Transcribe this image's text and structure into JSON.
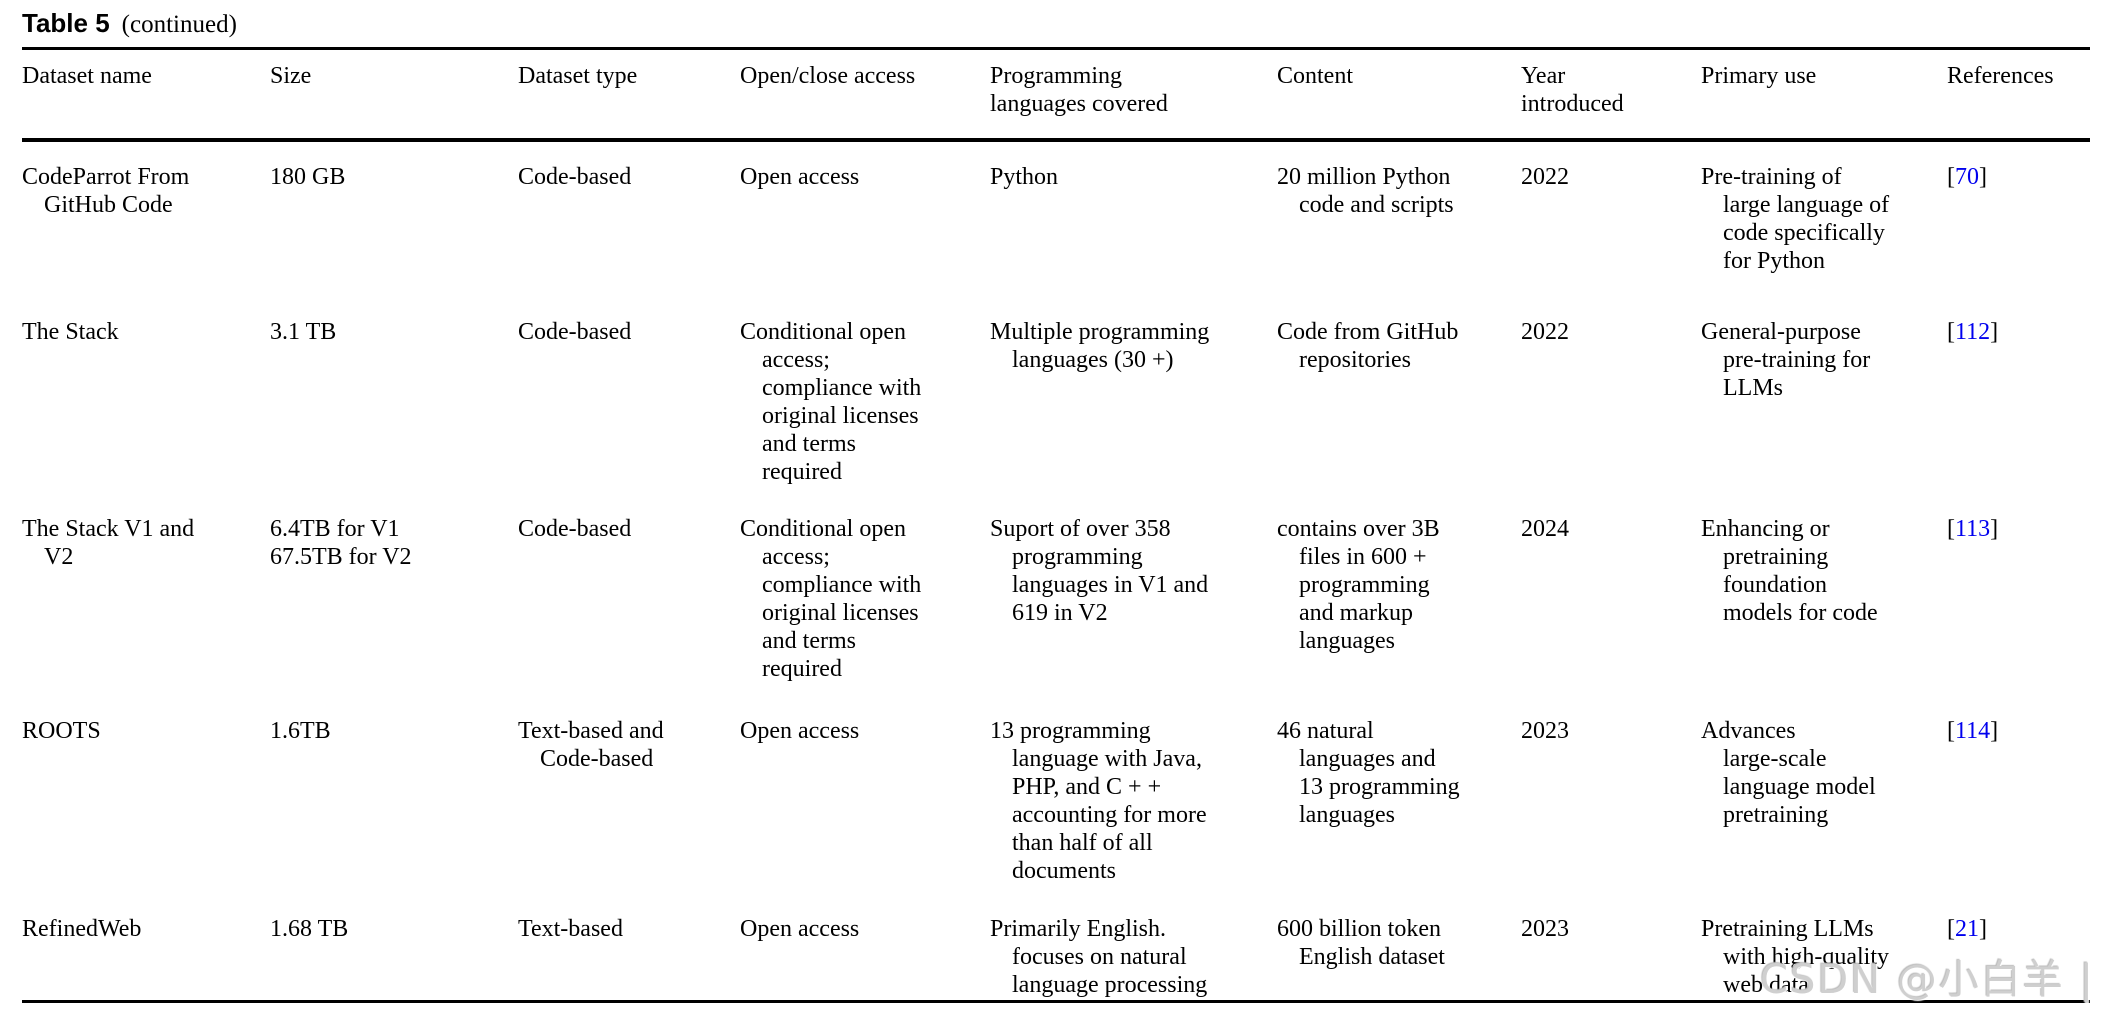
{
  "caption": {
    "label": "Table 5",
    "suffix": "(continued)"
  },
  "colors": {
    "link_blue": "#0000EE",
    "text": "#000000",
    "watermark_gray": "#cfcfcf",
    "background": "#ffffff"
  },
  "watermark": "CSDN @小白羊 |",
  "table": {
    "columns": [
      [
        "Dataset name"
      ],
      [
        "Size"
      ],
      [
        "Dataset type"
      ],
      [
        "Open/close access"
      ],
      [
        "Programming",
        "languages covered"
      ],
      [
        "Content"
      ],
      [
        "Year",
        "introduced"
      ],
      [
        "Primary use"
      ],
      [
        "References"
      ]
    ],
    "rows": [
      {
        "dataset_name": [
          "CodeParrot From",
          "GitHub Code"
        ],
        "size": [
          "180 GB"
        ],
        "dataset_type": [
          "Code-based"
        ],
        "access": [
          "Open access"
        ],
        "languages": [
          "Python"
        ],
        "content": [
          "20 million Python",
          "code and scripts"
        ],
        "year": "2022",
        "primary_use": [
          "Pre-training of",
          "large language of",
          "code specifically",
          "for Python"
        ],
        "ref": {
          "open": "[",
          "num": "70",
          "close": "]"
        }
      },
      {
        "dataset_name": [
          "The Stack"
        ],
        "size": [
          "3.1 TB"
        ],
        "dataset_type": [
          "Code-based"
        ],
        "access": [
          "Conditional open",
          "access;",
          "compliance with",
          "original licenses",
          "and terms",
          "required"
        ],
        "languages": [
          "Multiple programming",
          "languages (30 +)"
        ],
        "content": [
          "Code from GitHub",
          "repositories"
        ],
        "year": "2022",
        "primary_use": [
          "General-purpose",
          "pre-training for",
          "LLMs"
        ],
        "ref": {
          "open": "[",
          "num": "112",
          "close": "]"
        }
      },
      {
        "dataset_name": [
          "The Stack V1 and",
          "V2"
        ],
        "size": [
          "6.4TB for V1",
          "67.5TB for V2"
        ],
        "dataset_type": [
          "Code-based"
        ],
        "access": [
          "Conditional open",
          "access;",
          "compliance with",
          "original licenses",
          "and terms",
          "required"
        ],
        "languages": [
          "Suport of over 358",
          "programming",
          "languages in V1 and",
          "619 in V2"
        ],
        "content": [
          "contains over 3B",
          "files in 600 +",
          "programming",
          "and markup",
          "languages"
        ],
        "year": "2024",
        "primary_use": [
          "Enhancing or",
          "pretraining",
          "foundation",
          "models for code"
        ],
        "ref": {
          "open": "[",
          "num": "113",
          "close": "]"
        }
      },
      {
        "dataset_name": [
          "ROOTS"
        ],
        "size": [
          "1.6TB"
        ],
        "dataset_type": [
          "Text-based and",
          "Code-based"
        ],
        "access": [
          "Open access"
        ],
        "languages": [
          "13 programming",
          "language with Java,",
          "PHP, and C + +",
          "accounting for more",
          "than half of all",
          "documents"
        ],
        "content": [
          "46 natural",
          "languages and",
          "13 programming",
          "languages"
        ],
        "year": "2023",
        "primary_use": [
          "Advances",
          "large-scale",
          "language model",
          "pretraining"
        ],
        "ref": {
          "open": "[",
          "num": "114",
          "close": "]"
        }
      },
      {
        "dataset_name": [
          "RefinedWeb"
        ],
        "size": [
          "1.68 TB"
        ],
        "dataset_type": [
          "Text-based"
        ],
        "access": [
          "Open access"
        ],
        "languages": [
          "Primarily English.",
          "focuses on natural",
          "language processing"
        ],
        "content": [
          "600 billion token",
          "English dataset"
        ],
        "year": "2023",
        "primary_use": [
          "Pretraining LLMs",
          "with high-quality",
          "web data"
        ],
        "ref": {
          "open": "[",
          "num": "21",
          "close": "]"
        }
      }
    ]
  }
}
